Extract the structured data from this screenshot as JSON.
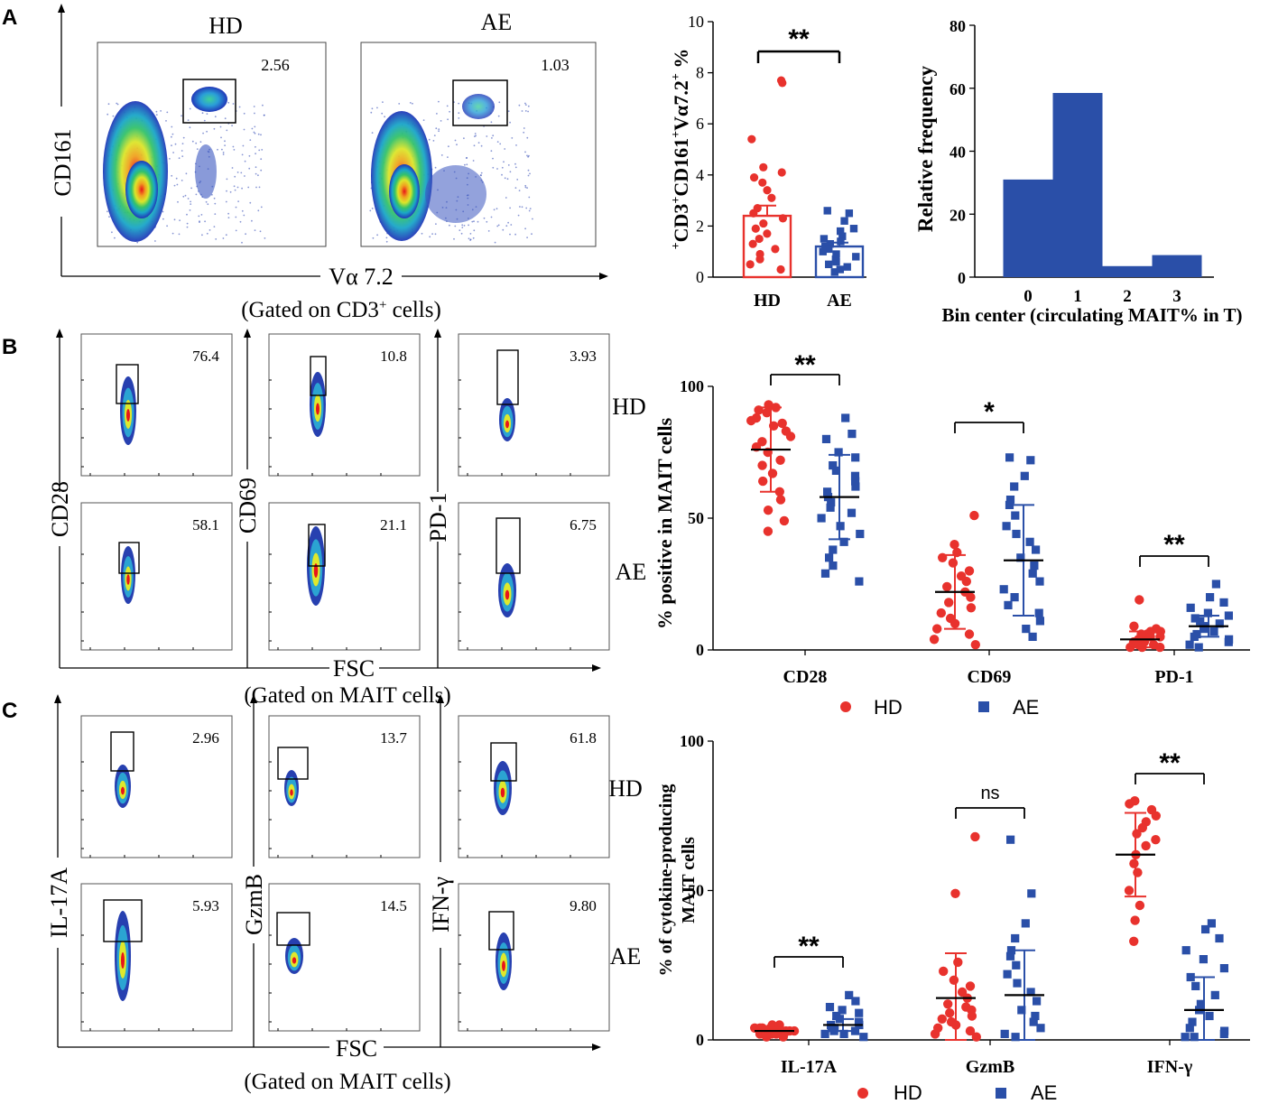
{
  "colors": {
    "hd": "#e8322d",
    "ae": "#2a4fa8",
    "axis": "#000000"
  },
  "panelA": {
    "label": "A",
    "flow": {
      "titles": [
        "HD",
        "AE"
      ],
      "values": [
        "2.56",
        "1.03"
      ],
      "ylabel": "CD161",
      "xlabel": "Vα 7.2",
      "gated_pre": "(Gated on CD3",
      "gated_sup": "+",
      "gated_post": " cells)"
    }
  },
  "panelB": {
    "label": "B",
    "flow": {
      "hd_values": [
        "76.4",
        "10.8",
        "3.93"
      ],
      "ae_values": [
        "58.1",
        "21.1",
        "6.75"
      ],
      "markers": [
        "CD28",
        "CD69",
        "PD-1"
      ],
      "row_labels": [
        "HD",
        "AE"
      ],
      "xlabel": "FSC",
      "gated": "(Gated on MAIT cells)"
    },
    "legend": {
      "hd": "HD",
      "ae": "AE"
    }
  },
  "panelC": {
    "label": "C",
    "flow": {
      "hd_values": [
        "2.96",
        "13.7",
        "61.8"
      ],
      "ae_values": [
        "5.93",
        "14.5",
        "9.80"
      ],
      "markers": [
        "IL-17A",
        "GzmB",
        "IFN-γ"
      ],
      "row_labels": [
        "HD",
        "AE"
      ],
      "xlabel": "FSC",
      "gated": "(Gated on MAIT cells)"
    },
    "legend": {
      "hd": "HD",
      "ae": "AE"
    }
  },
  "chart_data": [
    {
      "id": "A-bar",
      "type": "bar",
      "title": "",
      "categories": [
        "HD",
        "AE"
      ],
      "means": [
        2.4,
        1.2
      ],
      "sem": [
        0.4,
        0.15
      ],
      "points": {
        "HD": [
          7.7,
          7.6,
          5.4,
          4.3,
          4.1,
          3.9,
          3.7,
          3.4,
          3.1,
          2.7,
          2.5,
          2.3,
          2.1,
          1.9,
          1.7,
          1.5,
          1.3,
          1.1,
          0.9,
          0.7,
          0.5,
          0.3
        ],
        "AE": [
          2.6,
          2.5,
          2.2,
          1.9,
          1.8,
          1.6,
          1.5,
          1.4,
          1.3,
          1.2,
          1.1,
          1.0,
          0.9,
          0.8,
          0.7,
          0.6,
          0.5,
          0.4,
          0.3,
          0.2
        ]
      },
      "ylabel_parts": [
        "+",
        "CD3",
        "CD161",
        "+",
        "Vα7.2",
        "+",
        " %"
      ],
      "ylim": [
        0,
        10
      ],
      "yticks": [
        "0",
        "2",
        "4",
        "6",
        "8",
        "10"
      ],
      "significance": "**"
    },
    {
      "id": "A-hist",
      "type": "bar",
      "title": "",
      "bin_centers": [
        0,
        1,
        2,
        3
      ],
      "values": [
        31,
        58.5,
        3.5,
        7
      ],
      "xlabel": "Bin center (circulating MAIT% in T)",
      "ylabel": "Relative frequency",
      "ylim": [
        0,
        80
      ],
      "yticks": [
        "0",
        "20",
        "40",
        "60",
        "80"
      ],
      "xticks": [
        "0",
        "1",
        "2",
        "3"
      ]
    },
    {
      "id": "B-scatter",
      "type": "scatter",
      "categories": [
        "CD28",
        "CD69",
        "PD-1"
      ],
      "series": [
        {
          "name": "HD",
          "means": [
            76,
            22,
            4
          ],
          "sd": [
            16,
            14,
            3
          ],
          "points": [
            [
              93,
              92,
              91,
              90,
              88,
              87,
              86,
              85,
              83,
              81,
              79,
              77,
              75,
              72,
              70,
              67,
              64,
              60,
              57,
              53,
              49,
              45
            ],
            [
              51,
              40,
              37,
              35,
              33,
              30,
              28,
              26,
              24,
              22,
              20,
              18,
              16,
              14,
              12,
              10,
              8,
              6,
              4,
              2
            ],
            [
              19,
              9,
              8,
              7,
              7,
              6,
              6,
              5,
              5,
              4,
              4,
              3,
              3,
              3,
              2,
              2,
              2,
              1,
              1,
              1
            ]
          ]
        },
        {
          "name": "AE",
          "means": [
            58,
            34,
            9
          ],
          "sd": [
            16,
            21,
            4
          ],
          "points": [
            [
              88,
              82,
              80,
              75,
              73,
              70,
              68,
              66,
              64,
              62,
              60,
              58,
              56,
              54,
              52,
              50,
              47,
              44,
              41,
              38,
              35,
              32,
              29,
              26
            ],
            [
              73,
              72,
              66,
              62,
              57,
              55,
              51,
              47,
              44,
              41,
              38,
              35,
              32,
              29,
              26,
              23,
              20,
              17,
              14,
              11,
              8,
              5
            ],
            [
              25,
              20,
              18,
              16,
              14,
              13,
              12,
              11,
              10,
              9,
              8,
              7,
              6,
              5,
              4,
              3,
              2,
              1
            ]
          ]
        }
      ],
      "ylabel": "% positive in MAIT cells",
      "ylim": [
        0,
        100
      ],
      "yticks": [
        "0",
        "50",
        "100"
      ],
      "significance": [
        "**",
        "*",
        "**"
      ]
    },
    {
      "id": "C-scatter",
      "type": "scatter",
      "categories": [
        "IL-17A",
        "GzmB",
        "IFN-γ"
      ],
      "series": [
        {
          "name": "HD",
          "means": [
            3,
            14,
            62
          ],
          "sd": [
            1,
            15,
            14
          ],
          "points": [
            [
              5,
              5,
              4,
              4,
              4,
              4,
              3,
              3,
              3,
              3,
              3,
              2,
              2,
              2,
              2,
              2,
              1,
              1
            ],
            [
              68,
              49,
              26,
              23,
              20,
              18,
              16,
              14,
              12,
              11,
              10,
              9,
              8,
              7,
              6,
              5,
              4,
              3,
              2,
              1
            ],
            [
              80,
              79,
              77,
              75,
              73,
              71,
              69,
              67,
              65,
              62,
              59,
              56,
              50,
              45,
              40,
              33
            ]
          ]
        },
        {
          "name": "AE",
          "means": [
            5,
            15,
            10
          ],
          "sd": [
            2,
            15,
            11
          ],
          "points": [
            [
              15,
              13,
              11,
              10,
              9,
              8,
              7,
              6,
              6,
              5,
              5,
              4,
              4,
              3,
              3,
              2,
              2,
              1
            ],
            [
              67,
              49,
              39,
              34,
              30,
              28,
              25,
              22,
              19,
              16,
              13,
              10,
              8,
              6,
              4,
              2,
              1
            ],
            [
              39,
              37,
              34,
              30,
              27,
              24,
              21,
              18,
              15,
              12,
              10,
              8,
              6,
              4,
              3,
              2,
              1,
              1
            ]
          ]
        }
      ],
      "ylabel": "% of cytokine-producing MAIT cells",
      "ylabel_lines": [
        "% of cytokine-producing",
        "MAIT cells"
      ],
      "ylim": [
        0,
        100
      ],
      "yticks": [
        "0",
        "50",
        "100"
      ],
      "significance": [
        "**",
        "ns",
        "**"
      ]
    }
  ]
}
